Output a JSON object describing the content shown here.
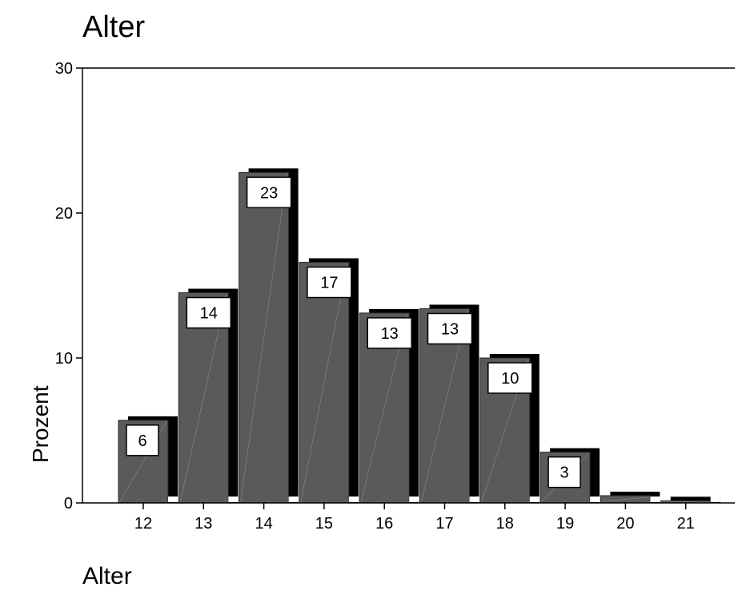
{
  "chart_data": {
    "type": "bar",
    "title": "Alter",
    "xlabel": "Alter",
    "ylabel": "Prozent",
    "categories": [
      "12",
      "13",
      "14",
      "15",
      "16",
      "17",
      "18",
      "19",
      "20",
      "21"
    ],
    "values": [
      5.7,
      14.5,
      22.8,
      16.6,
      13.1,
      13.4,
      10.0,
      3.5,
      0.5,
      0.15
    ],
    "data_labels": [
      "6",
      "14",
      "23",
      "17",
      "13",
      "13",
      "10",
      "3",
      "",
      ""
    ],
    "ylim": [
      0,
      30
    ],
    "yticks": [
      0,
      10,
      20,
      30
    ],
    "grid": false,
    "legend": "none",
    "colors": {
      "bar_fill": "#5a5a5a",
      "bar_shadow": "#000000",
      "label_box": "#ffffff"
    }
  }
}
